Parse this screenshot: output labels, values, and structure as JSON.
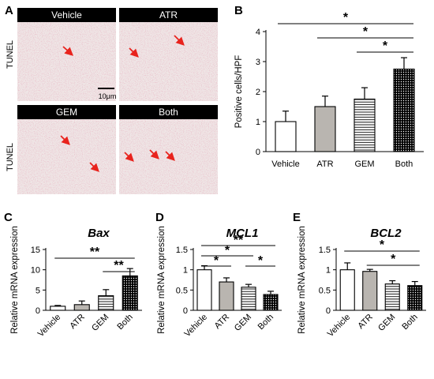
{
  "colors": {
    "vehicle": "#ffffff",
    "atr": "#b9b5b0",
    "arrow": "#e8231d",
    "tissue_bg": "#efe6e6",
    "title_bar": "#000000"
  },
  "panel_a": {
    "letter": "A",
    "row_labels": [
      "TUNEL",
      "TUNEL"
    ],
    "image_titles": [
      "Vehicle",
      "ATR",
      "GEM",
      "Both"
    ],
    "scale_bar_label": "10μm"
  },
  "chart_data": [
    {
      "panel": "B",
      "type": "bar",
      "title": "",
      "categories": [
        "Vehicle",
        "ATR",
        "GEM",
        "Both"
      ],
      "values": [
        1.0,
        1.5,
        1.75,
        2.75
      ],
      "errors": [
        0.35,
        0.35,
        0.38,
        0.38
      ],
      "patterns": [
        "solid-white",
        "solid-gray",
        "horizontal-lines",
        "dots"
      ],
      "ylabel": "Positive cells/HPF",
      "xlabel": "",
      "ylim": [
        0,
        4
      ],
      "yticks": [
        0,
        1,
        2,
        3,
        4
      ],
      "yticklabels": [
        "0",
        "1",
        "2",
        "3",
        "4"
      ],
      "xtick_rotation": 0,
      "significance": [
        {
          "from": "Vehicle",
          "to": "Both",
          "label": "*"
        },
        {
          "from": "ATR",
          "to": "Both",
          "label": "*"
        },
        {
          "from": "GEM",
          "to": "Both",
          "label": "*"
        }
      ]
    },
    {
      "panel": "C",
      "type": "bar",
      "title": "Bax",
      "categories": [
        "Vehicle",
        "ATR",
        "GEM",
        "Both"
      ],
      "values": [
        1.0,
        1.4,
        3.6,
        8.5
      ],
      "errors": [
        0.2,
        0.9,
        1.5,
        1.8
      ],
      "patterns": [
        "solid-white",
        "solid-gray",
        "horizontal-lines",
        "dots"
      ],
      "ylabel": "Relative mRNA expression",
      "xlabel": "",
      "ylim": [
        0,
        15
      ],
      "yticks": [
        0,
        5,
        10,
        15
      ],
      "yticklabels": [
        "0",
        "5",
        "10",
        "15"
      ],
      "xtick_rotation": -45,
      "significance": [
        {
          "from": "Vehicle",
          "to": "Both",
          "label": "**"
        },
        {
          "from": "GEM",
          "to": "Both",
          "label": "**"
        }
      ]
    },
    {
      "panel": "D",
      "type": "bar",
      "title": "MCL1",
      "categories": [
        "Vehicle",
        "ATR",
        "GEM",
        "Both"
      ],
      "values": [
        1.0,
        0.7,
        0.57,
        0.39
      ],
      "errors": [
        0.1,
        0.1,
        0.07,
        0.08
      ],
      "patterns": [
        "solid-white",
        "solid-gray",
        "horizontal-lines",
        "dots"
      ],
      "ylabel": "Relative mRNA expression",
      "xlabel": "",
      "ylim": [
        0,
        1.5
      ],
      "yticks": [
        0,
        0.5,
        1,
        1.5
      ],
      "yticklabels": [
        "0",
        "0.5",
        "1",
        "1.5"
      ],
      "xtick_rotation": -45,
      "significance": [
        {
          "from": "Vehicle",
          "to": "Both",
          "label": "**"
        },
        {
          "from": "Vehicle",
          "to": "GEM",
          "label": "*"
        },
        {
          "from": "Vehicle",
          "to": "ATR",
          "label": "*"
        },
        {
          "from": "GEM",
          "to": "Both",
          "label": "*"
        }
      ]
    },
    {
      "panel": "E",
      "type": "bar",
      "title": "BCL2",
      "categories": [
        "Vehicle",
        "ATR",
        "GEM",
        "Both"
      ],
      "values": [
        1.0,
        0.96,
        0.65,
        0.61
      ],
      "errors": [
        0.17,
        0.05,
        0.08,
        0.1
      ],
      "patterns": [
        "solid-white",
        "solid-gray",
        "horizontal-lines",
        "dots"
      ],
      "ylabel": "Relative mRNA expression",
      "xlabel": "",
      "ylim": [
        0,
        1.5
      ],
      "yticks": [
        0,
        0.5,
        1,
        1.5
      ],
      "yticklabels": [
        "0",
        "0.5",
        "1",
        "1.5"
      ],
      "xtick_rotation": -45,
      "significance": [
        {
          "from": "Vehicle",
          "to": "Both",
          "label": "*"
        },
        {
          "from": "ATR",
          "to": "Both",
          "label": "*"
        }
      ]
    }
  ]
}
